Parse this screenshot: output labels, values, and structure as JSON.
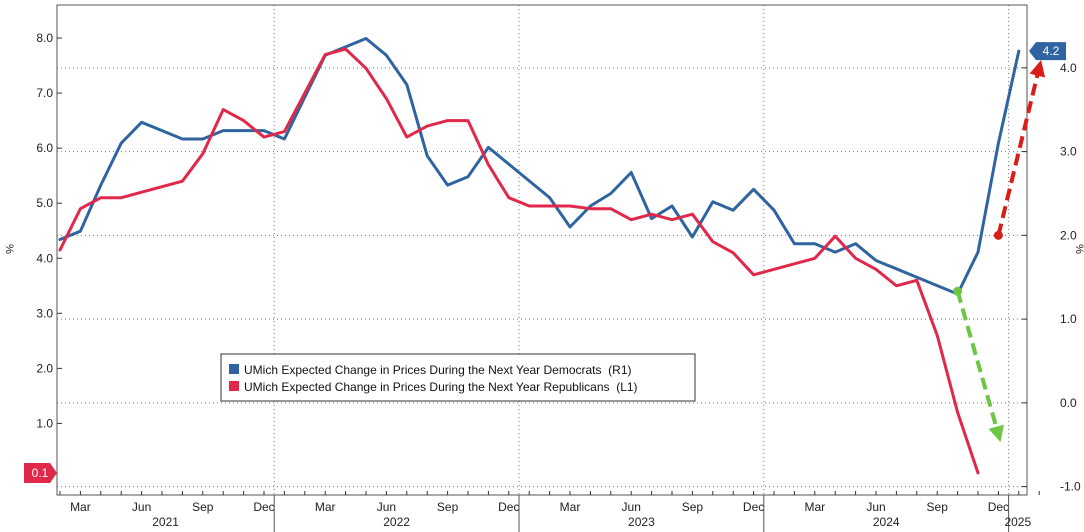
{
  "chart_data": {
    "type": "line",
    "x": [
      "2021-02",
      "2021-03",
      "2021-04",
      "2021-05",
      "2021-06",
      "2021-07",
      "2021-08",
      "2021-09",
      "2021-10",
      "2021-11",
      "2021-12",
      "2022-01",
      "2022-02",
      "2022-03",
      "2022-04",
      "2022-05",
      "2022-06",
      "2022-07",
      "2022-08",
      "2022-09",
      "2022-10",
      "2022-11",
      "2022-12",
      "2023-01",
      "2023-02",
      "2023-03",
      "2023-04",
      "2023-05",
      "2023-06",
      "2023-07",
      "2023-08",
      "2023-09",
      "2023-10",
      "2023-11",
      "2023-12",
      "2024-01",
      "2024-02",
      "2024-03",
      "2024-04",
      "2024-05",
      "2024-06",
      "2024-07",
      "2024-08",
      "2024-09",
      "2024-10",
      "2024-11",
      "2024-12",
      "2025-01",
      "2025-02"
    ],
    "x_tick_labels": [
      {
        "x": "2021-03",
        "label": "Mar"
      },
      {
        "x": "2021-06",
        "label": "Jun"
      },
      {
        "x": "2021-09",
        "label": "Sep"
      },
      {
        "x": "2021-12",
        "label": "Dec"
      },
      {
        "x": "2022-03",
        "label": "Mar"
      },
      {
        "x": "2022-06",
        "label": "Jun"
      },
      {
        "x": "2022-09",
        "label": "Sep"
      },
      {
        "x": "2022-12",
        "label": "Dec"
      },
      {
        "x": "2023-03",
        "label": "Mar"
      },
      {
        "x": "2023-06",
        "label": "Jun"
      },
      {
        "x": "2023-09",
        "label": "Sep"
      },
      {
        "x": "2023-12",
        "label": "Dec"
      },
      {
        "x": "2024-03",
        "label": "Mar"
      },
      {
        "x": "2024-06",
        "label": "Jun"
      },
      {
        "x": "2024-09",
        "label": "Sep"
      },
      {
        "x": "2024-12",
        "label": "Dec"
      }
    ],
    "years": [
      {
        "label": "2021",
        "start": "2021-02",
        "end": "2021-12"
      },
      {
        "label": "2022",
        "start": "2022-01",
        "end": "2022-12"
      },
      {
        "label": "2023",
        "start": "2023-01",
        "end": "2023-12"
      },
      {
        "label": "2024",
        "start": "2024-01",
        "end": "2024-12"
      },
      {
        "label": "2025",
        "start": "2025-01",
        "end": "2025-02"
      }
    ],
    "left_axis": {
      "unit": "%",
      "ylim": [
        -0.3,
        8.6
      ],
      "ticks": [
        1.0,
        2.0,
        3.0,
        4.0,
        5.0,
        6.0,
        7.0,
        8.0
      ],
      "tick_labels": [
        "1.0",
        "2.0",
        "3.0",
        "4.0",
        "5.0",
        "6.0",
        "7.0",
        "8.0"
      ]
    },
    "right_axis": {
      "unit": "%",
      "ylim": [
        -1.1,
        4.75
      ],
      "ticks": [
        -1.0,
        0.0,
        1.0,
        2.0,
        3.0,
        4.0
      ],
      "tick_labels": [
        "-1.0",
        "0.0",
        "1.0",
        "2.0",
        "3.0",
        "4.0"
      ]
    },
    "gridlines": {
      "horizontal": "dotted",
      "vertical": "dotted"
    },
    "series": [
      {
        "name": "UMich Expected Change in Prices During the Next Year Democrats  (R1)",
        "axis": "right",
        "color": "#2f64a0",
        "values": [
          1.95,
          2.05,
          2.6,
          3.1,
          3.35,
          3.25,
          3.15,
          3.15,
          3.25,
          3.25,
          3.25,
          3.15,
          3.65,
          4.15,
          4.25,
          4.35,
          4.15,
          3.8,
          2.95,
          2.6,
          2.7,
          3.05,
          2.85,
          2.65,
          2.45,
          2.1,
          2.35,
          2.5,
          2.75,
          2.2,
          2.35,
          1.98,
          2.4,
          2.3,
          2.55,
          2.3,
          1.9,
          1.9,
          1.8,
          1.9,
          1.7,
          1.6,
          1.5,
          1.4,
          1.3,
          1.8,
          3.1,
          4.2,
          null
        ]
      },
      {
        "name": "UMich Expected Change in Prices During the Next Year Republicans  (L1)",
        "axis": "left",
        "color": "#e0294a",
        "values": [
          4.15,
          4.9,
          5.1,
          5.1,
          5.2,
          5.3,
          5.4,
          5.9,
          6.7,
          6.5,
          6.2,
          6.3,
          7.0,
          7.7,
          7.8,
          7.45,
          6.9,
          6.2,
          6.4,
          6.5,
          6.5,
          5.7,
          5.1,
          4.95,
          4.95,
          4.95,
          4.9,
          4.9,
          4.7,
          4.8,
          4.7,
          4.8,
          4.3,
          4.1,
          3.7,
          3.8,
          3.9,
          4.0,
          4.4,
          4.0,
          3.8,
          3.5,
          3.6,
          2.6,
          1.2,
          0.1,
          null,
          null,
          null
        ]
      }
    ],
    "last_value_badges": [
      {
        "series": 0,
        "label": "4.2",
        "color": "#2f64a0"
      },
      {
        "series": 1,
        "label": "0.1",
        "color": "#e0294a"
      }
    ],
    "annotations": [
      {
        "type": "dashed-arrow",
        "color": "#d91e18",
        "from": {
          "x": "2024-12",
          "y_right": 2.0
        },
        "to": {
          "x": "2025-02",
          "y_right": 4.0
        }
      },
      {
        "type": "dashed-arrow",
        "color": "#6cc644",
        "from": {
          "x": "2024-10",
          "y_left": 3.4
        },
        "to": {
          "x": "2024-12",
          "y_left": 0.8
        }
      }
    ],
    "legend": {
      "placement": "center-bottom"
    }
  }
}
